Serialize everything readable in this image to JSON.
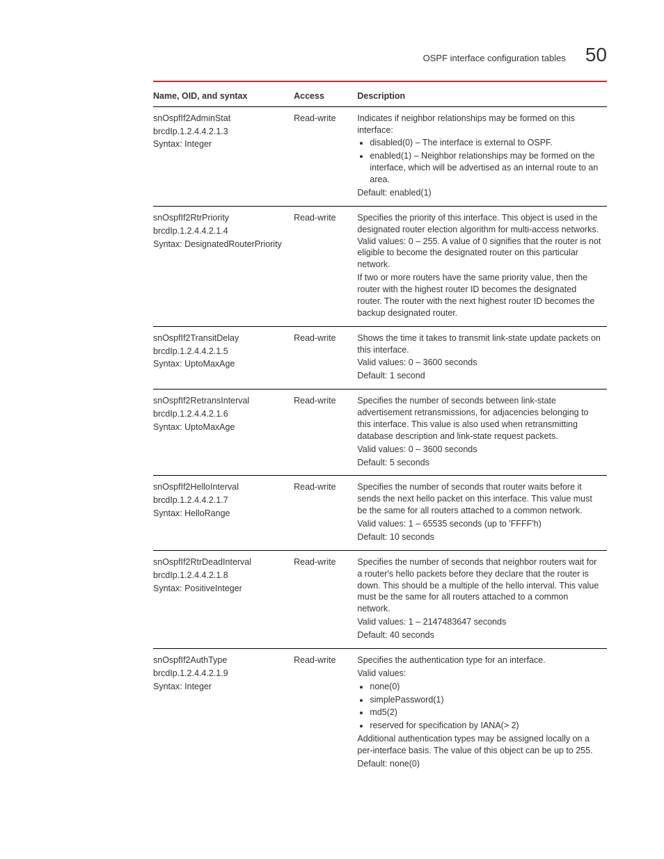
{
  "header": {
    "title": "OSPF interface configuration tables",
    "page_number": "50"
  },
  "table": {
    "columns": [
      "Name, OID, and syntax",
      "Access",
      "Description"
    ],
    "rows": [
      {
        "name": "snOspfIf2AdminStat",
        "oid": "brcdIp.1.2.4.4.2.1.3",
        "syntax": "Syntax: Integer",
        "access": "Read-write",
        "desc_pre": "Indicates if neighbor relationships may be formed on this interface:",
        "bullets": [
          "disabled(0) – The interface is external to OSPF.",
          "enabled(1) – Neighbor relationships may be formed on the interface, which will be advertised as an internal route to an area."
        ],
        "desc_post": "Default: enabled(1)"
      },
      {
        "name": "snOspfIf2RtrPriority",
        "oid": "brcdIp.1.2.4.4.2.1.4",
        "syntax": "Syntax: DesignatedRouterPriority",
        "access": "Read-write",
        "desc_pre": "Specifies the priority of this interface. This object is used in the designated router election algorithm for multi-access networks. Valid values: 0 – 255. A value of 0 signifies that the router is not eligible to become the designated router on this particular network.",
        "desc_post": "If two or more routers have the same priority value, then the router with the highest router ID becomes the designated router. The router with the next highest router ID becomes the backup designated router."
      },
      {
        "name": "snOspfIf2TransitDelay",
        "oid": "brcdIp.1.2.4.4.2.1.5",
        "syntax": "Syntax: UptoMaxAge",
        "access": "Read-write",
        "desc_pre": "Shows the time it takes to transmit link-state update packets on this interface.",
        "desc_mid": "Valid values: 0 – 3600 seconds",
        "desc_post": "Default: 1 second"
      },
      {
        "name": "snOspfIf2RetransInterval",
        "oid": "brcdIp.1.2.4.4.2.1.6",
        "syntax": "Syntax: UptoMaxAge",
        "access": "Read-write",
        "desc_pre": "Specifies the number of seconds between link-state advertisement retransmissions, for adjacencies belonging to this interface. This value is also used when retransmitting database description and link-state request packets.",
        "desc_mid": "Valid values: 0 – 3600 seconds",
        "desc_post": "Default: 5 seconds"
      },
      {
        "name": "snOspfIf2HelloInterval",
        "oid": "brcdIp.1.2.4.4.2.1.7",
        "syntax": "Syntax: HelloRange",
        "access": "Read-write",
        "desc_pre": "Specifies the number of seconds that router waits before it sends the next hello packet on this interface. This value must be the same for all routers attached to a common network.",
        "desc_mid": "Valid values: 1 – 65535 seconds (up to 'FFFF'h)",
        "desc_post": "Default: 10 seconds"
      },
      {
        "name": "snOspfIf2RtrDeadInterval",
        "oid": "brcdIp.1.2.4.4.2.1.8",
        "syntax": "Syntax: PositiveInteger",
        "access": "Read-write",
        "desc_pre": "Specifies the number of seconds that neighbor routers wait for a router's hello packets before they declare that the router is down. This should be a multiple of the hello interval. This value must be the same for all routers attached to a common network.",
        "desc_mid": "Valid values: 1 – 2147483647 seconds",
        "desc_post": "Default: 40 seconds"
      },
      {
        "name": "snOspfIf2AuthType",
        "oid": "brcdIp.1.2.4.4.2.1.9",
        "syntax": "Syntax: Integer",
        "access": "Read-write",
        "desc_pre": "Specifies the authentication type for an interface.",
        "desc_pre2": "Valid values:",
        "bullets": [
          "none(0)",
          "simplePassword(1)",
          "md5(2)",
          "reserved for specification by IANA(> 2)"
        ],
        "desc_post": "Additional authentication types may be assigned locally on a per-interface basis. The value of this object can be up to 255.",
        "desc_post2": "Default: none(0)"
      }
    ]
  },
  "style": {
    "colors": {
      "text": "#333333",
      "rule": "#d12323",
      "row_border": "#000000",
      "background": "#ffffff"
    },
    "fonts": {
      "body_size_pt": 10,
      "header_number_size_pt": 22
    }
  }
}
